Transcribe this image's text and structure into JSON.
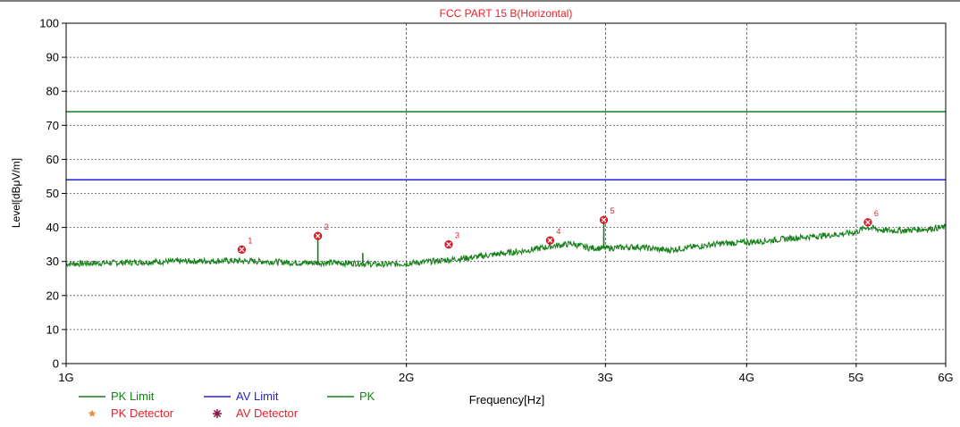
{
  "chart_data": {
    "type": "line",
    "title": "FCC PART 15 B(Horizontal)",
    "xlabel": "Frequency[Hz]",
    "ylabel": "Level[dBμV/m]",
    "x_scale": "log",
    "xlim": [
      1000000000,
      6000000000
    ],
    "ylim": [
      0,
      100
    ],
    "x_ticks": [
      {
        "value": 1000000000,
        "label": "1G"
      },
      {
        "value": 2000000000,
        "label": "2G"
      },
      {
        "value": 3000000000,
        "label": "3G"
      },
      {
        "value": 4000000000,
        "label": "4G"
      },
      {
        "value": 5000000000,
        "label": "5G"
      },
      {
        "value": 6000000000,
        "label": "6G"
      }
    ],
    "y_ticks": [
      0,
      10,
      20,
      30,
      40,
      50,
      60,
      70,
      80,
      90,
      100
    ],
    "grid": true,
    "legend_position": "bottom-left",
    "series": [
      {
        "name": "PK Limit",
        "kind": "limit",
        "color": "#16801a",
        "value": 74
      },
      {
        "name": "AV Limit",
        "kind": "limit",
        "color": "#2323d8",
        "value": 54
      },
      {
        "name": "PK",
        "kind": "trace",
        "color": "#16801a",
        "x": [
          1000000000,
          1100000000,
          1200000000,
          1300000000,
          1400000000,
          1500000000,
          1600000000,
          1700000000,
          1800000000,
          1900000000,
          2000000000,
          2100000000,
          2200000000,
          2300000000,
          2400000000,
          2500000000,
          2600000000,
          2700000000,
          2800000000,
          2900000000,
          3000000000,
          3200000000,
          3400000000,
          3600000000,
          3800000000,
          4000000000,
          4200000000,
          4400000000,
          4600000000,
          4800000000,
          5000000000,
          5100000000,
          5300000000,
          5500000000,
          5800000000,
          6000000000
        ],
        "y": [
          29.3,
          29.6,
          29.9,
          30.1,
          30.2,
          30.0,
          29.6,
          29.6,
          29.5,
          29.1,
          29.4,
          30.0,
          30.6,
          31.3,
          32.1,
          32.8,
          33.6,
          34.6,
          35.2,
          34.0,
          33.9,
          34.3,
          33.3,
          34.3,
          35.3,
          35.6,
          36.2,
          36.9,
          37.4,
          37.9,
          38.6,
          40.1,
          39.1,
          39.1,
          39.6,
          40.1
        ]
      },
      {
        "name": "PK Detector",
        "kind": "marker",
        "color": "#e8212b",
        "points": [
          {
            "label": "1",
            "x": 1430000000,
            "y": 33.5
          },
          {
            "label": "2",
            "x": 1670000000,
            "y": 37.5
          },
          {
            "label": "3",
            "x": 2180000000,
            "y": 35.0
          },
          {
            "label": "4",
            "x": 2680000000,
            "y": 36.2
          },
          {
            "label": "5",
            "x": 2990000000,
            "y": 42.2
          },
          {
            "label": "6",
            "x": 5120000000,
            "y": 41.5
          }
        ]
      },
      {
        "name": "AV Detector",
        "kind": "marker",
        "color": "#8e1b4e",
        "points": []
      }
    ],
    "spikes": [
      {
        "x": 1670000000,
        "y": 36.4
      },
      {
        "x": 1830000000,
        "y": 32.5
      },
      {
        "x": 2990000000,
        "y": 41.0
      }
    ],
    "legend": [
      {
        "label": "PK Limit",
        "symbol": "line",
        "color": "#16801a",
        "text_color": "#16801a"
      },
      {
        "label": "AV Limit",
        "symbol": "line",
        "color": "#2323d8",
        "text_color": "#2323d8"
      },
      {
        "label": "PK",
        "symbol": "line",
        "color": "#16801a",
        "text_color": "#16801a"
      },
      {
        "label": "PK Detector",
        "symbol": "star",
        "color": "#f08a3a",
        "text_color": "#e8212b"
      },
      {
        "label": "AV Detector",
        "symbol": "burst",
        "color": "#8e1b4e",
        "text_color": "#e8212b"
      }
    ]
  }
}
